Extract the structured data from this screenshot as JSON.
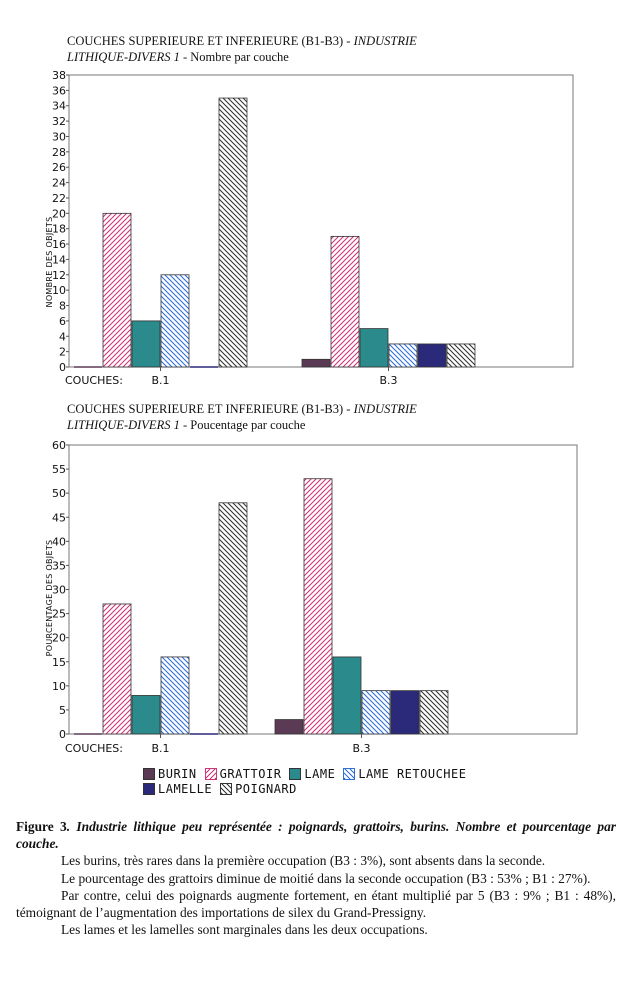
{
  "colors": {
    "burin": "#5b3a55",
    "grattoir": "#d0357a",
    "lame": "#2b8a8c",
    "lame_retouchee": "#2f6fd8",
    "lamelle": "#2b2a7a",
    "poignard": "#333333"
  },
  "chart_top": {
    "title_line1_plain": "COUCHES SUPERIEURE ET INFERIEURE (B1-B3) - ",
    "title_line1_italic": "INDUSTRIE",
    "title_line2_italic": "LITHIQUE-DIVERS 1",
    "title_line2_plain": " - Nombre par couche",
    "ylabel": "NOMBRE DES OBJETS",
    "couches_label": "COUCHES:"
  },
  "chart_bottom": {
    "title_line1_plain": "COUCHES SUPERIEURE ET INFERIEURE (B1-B3) - ",
    "title_line1_italic": "INDUSTRIE",
    "title_line2_italic": "LITHIQUE-DIVERS 1",
    "title_line2_plain": " - Poucentage par couche",
    "ylabel": "POURCENTAGE DES OBJETS",
    "couches_label": "COUCHES:"
  },
  "legend": {
    "burin": "BURIN",
    "grattoir": "GRATTOIR",
    "lame": "LAME",
    "lame_retouchee": "LAME RETOUCHEE",
    "lamelle": "LAMELLE",
    "poignard": "POIGNARD"
  },
  "caption": {
    "fig_label": "Figure 3",
    "fig_title": ". Industrie lithique peu représentée : poignards, grattoirs, burins. Nombre et pourcentage par couche.",
    "p1": "Les burins, très rares dans la première occupation (B3 : 3%), sont absents dans la seconde.",
    "p2": "Le pourcentage des grattoirs diminue de moitié dans la seconde occupation (B3 : 53% ; B1 : 27%).",
    "p3": "Par contre, celui des poignards augmente fortement, en étant multiplié par 5 (B3 : 9% ; B1 : 48%), témoignant de l’augmentation des importations de silex du Grand-Pressigny.",
    "p4": "Les lames et les lamelles sont marginales dans les deux occupations."
  },
  "chart_data": [
    {
      "type": "bar",
      "title": "COUCHES SUPERIEURE ET INFERIEURE (B1-B3) - INDUSTRIE LITHIQUE-DIVERS 1 - Nombre par couche",
      "xlabel": "COUCHES:",
      "ylabel": "NOMBRE DES OBJETS",
      "categories": [
        "B.1",
        "B.3"
      ],
      "ylim": [
        0,
        38
      ],
      "yticks": [
        0,
        2,
        4,
        6,
        8,
        10,
        12,
        14,
        16,
        18,
        20,
        22,
        24,
        26,
        28,
        30,
        32,
        34,
        36,
        38
      ],
      "series": [
        {
          "name": "BURIN",
          "values": [
            0,
            1
          ]
        },
        {
          "name": "GRATTOIR",
          "values": [
            20,
            17
          ]
        },
        {
          "name": "LAME",
          "values": [
            6,
            5
          ]
        },
        {
          "name": "LAME RETOUCHEE",
          "values": [
            12,
            3
          ]
        },
        {
          "name": "LAMELLE",
          "values": [
            0,
            3
          ]
        },
        {
          "name": "POIGNARD",
          "values": [
            35,
            3
          ]
        }
      ]
    },
    {
      "type": "bar",
      "title": "COUCHES SUPERIEURE ET INFERIEURE (B1-B3) - INDUSTRIE LITHIQUE-DIVERS 1 - Poucentage par couche",
      "xlabel": "COUCHES:",
      "ylabel": "POURCENTAGE DES OBJETS",
      "categories": [
        "B.1",
        "B.3"
      ],
      "ylim": [
        0,
        60
      ],
      "yticks": [
        0,
        5,
        10,
        15,
        20,
        25,
        30,
        35,
        40,
        45,
        50,
        55,
        60
      ],
      "series": [
        {
          "name": "BURIN",
          "values": [
            0,
            3
          ]
        },
        {
          "name": "GRATTOIR",
          "values": [
            27,
            53
          ]
        },
        {
          "name": "LAME",
          "values": [
            8,
            16
          ]
        },
        {
          "name": "LAME RETOUCHEE",
          "values": [
            16,
            9
          ]
        },
        {
          "name": "LAMELLE",
          "values": [
            0,
            9
          ]
        },
        {
          "name": "POIGNARD",
          "values": [
            48,
            9
          ]
        }
      ]
    }
  ]
}
